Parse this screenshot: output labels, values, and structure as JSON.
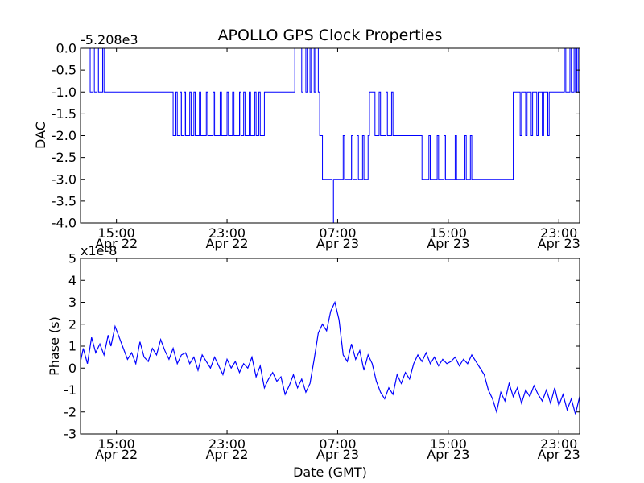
{
  "figure": {
    "title": "APOLLO GPS Clock Properties",
    "xlabel": "Date (GMT)"
  },
  "chart_data": [
    {
      "type": "line",
      "ylabel": "DAC",
      "offset_text": "-5.208e3",
      "ylim": [
        -4.0,
        0.0
      ],
      "xlim": [
        12.4,
        48.5
      ],
      "x_unit": "hours since 00:00 Apr 22 (GMT)",
      "yticks": [
        "0.0",
        "-0.5",
        "-1.0",
        "-1.5",
        "-2.0",
        "-2.5",
        "-3.0",
        "-3.5",
        "-4.0"
      ],
      "ytick_values": [
        0.0,
        -0.5,
        -1.0,
        -1.5,
        -2.0,
        -2.5,
        -3.0,
        -3.5,
        -4.0
      ],
      "xticks": [
        {
          "time": "15:00",
          "date": "Apr 22",
          "hour": 15
        },
        {
          "time": "23:00",
          "date": "Apr 22",
          "hour": 23
        },
        {
          "time": "07:00",
          "date": "Apr 23",
          "hour": 31
        },
        {
          "time": "15:00",
          "date": "Apr 23",
          "hour": 39
        },
        {
          "time": "23:00",
          "date": "Apr 23",
          "hour": 47
        }
      ],
      "series": [
        {
          "color": "#0000ff",
          "x": [
            12.4,
            13.0,
            13.1,
            13.3,
            13.4,
            13.6,
            13.7,
            14.0,
            14.1,
            14.6,
            16.6,
            19.0,
            19.1,
            19.3,
            19.4,
            19.6,
            19.7,
            19.9,
            20.0,
            20.3,
            20.4,
            20.6,
            20.7,
            21.0,
            21.1,
            21.5,
            21.6,
            22.0,
            22.1,
            22.5,
            22.6,
            23.0,
            23.1,
            23.4,
            23.5,
            23.9,
            24.0,
            24.2,
            24.3,
            24.6,
            24.7,
            25.0,
            25.1,
            25.3,
            25.4,
            25.7,
            27.1,
            27.8,
            27.9,
            28.4,
            28.5,
            28.7,
            28.8,
            29.0,
            29.1,
            29.3,
            29.4,
            29.6,
            29.7,
            29.9,
            30.5,
            30.6,
            30.7,
            31.4,
            31.5,
            32.0,
            32.1,
            32.4,
            32.5,
            32.8,
            32.9,
            33.2,
            33.3,
            33.7,
            34.0,
            34.1,
            34.5,
            34.6,
            34.9,
            35.0,
            35.4,
            37.0,
            37.1,
            37.6,
            37.7,
            38.2,
            38.3,
            38.7,
            38.8,
            39.5,
            39.6,
            40.2,
            40.3,
            40.6,
            40.7,
            41.2,
            43.6,
            43.7,
            44.2,
            44.3,
            44.6,
            44.7,
            45.0,
            45.1,
            45.4,
            45.5,
            45.8,
            45.9,
            46.2,
            46.3,
            47.0,
            47.1,
            47.4,
            47.5,
            47.8,
            47.9,
            48.1,
            48.2,
            48.3,
            48.4,
            48.5
          ],
          "y": [
            0.0,
            0.0,
            -1.0,
            0.0,
            -1.0,
            0.0,
            -1.0,
            0.0,
            -1.0,
            -1.0,
            -1.0,
            -1.0,
            -2.0,
            -1.0,
            -2.0,
            -1.0,
            -2.0,
            -1.0,
            -2.0,
            -1.0,
            -2.0,
            -1.0,
            -2.0,
            -1.0,
            -2.0,
            -1.0,
            -2.0,
            -1.0,
            -2.0,
            -1.0,
            -2.0,
            -1.0,
            -2.0,
            -1.0,
            -2.0,
            -1.0,
            -2.0,
            -1.0,
            -2.0,
            -1.0,
            -2.0,
            -1.0,
            -2.0,
            -1.0,
            -2.0,
            -1.0,
            -1.0,
            -1.0,
            0.0,
            -1.0,
            0.0,
            -1.0,
            0.0,
            -1.0,
            0.0,
            -1.0,
            0.0,
            -1.0,
            -2.0,
            -3.0,
            -3.0,
            -4.0,
            -3.0,
            -2.0,
            -3.0,
            -2.0,
            -3.0,
            -2.0,
            -3.0,
            -2.0,
            -3.0,
            -2.0,
            -1.0,
            -2.0,
            -1.0,
            -2.0,
            -1.0,
            -2.0,
            -1.0,
            -2.0,
            -2.0,
            -2.0,
            -3.0,
            -2.0,
            -3.0,
            -2.0,
            -3.0,
            -2.0,
            -3.0,
            -2.0,
            -3.0,
            -2.0,
            -3.0,
            -2.0,
            -3.0,
            -3.0,
            -3.0,
            -1.0,
            -2.0,
            -1.0,
            -2.0,
            -1.0,
            -2.0,
            -1.0,
            -2.0,
            -1.0,
            -2.0,
            -1.0,
            -2.0,
            -1.0,
            -1.0,
            -1.0,
            0.0,
            -1.0,
            0.0,
            -1.0,
            0.0,
            -1.0,
            0.0,
            -1.0,
            -1.0
          ]
        }
      ]
    },
    {
      "type": "line",
      "ylabel": "Phase (s)",
      "offset_text": "x1e-8",
      "ylim": [
        -3,
        5
      ],
      "xlim": [
        12.4,
        48.5
      ],
      "x_unit": "hours since 00:00 Apr 22 (GMT)",
      "yticks": [
        "5",
        "4",
        "3",
        "2",
        "1",
        "0",
        "-1",
        "-2",
        "-3"
      ],
      "ytick_values": [
        5,
        4,
        3,
        2,
        1,
        0,
        -1,
        -2,
        -3
      ],
      "xticks": [
        {
          "time": "15:00",
          "date": "Apr 22",
          "hour": 15
        },
        {
          "time": "23:00",
          "date": "Apr 22",
          "hour": 23
        },
        {
          "time": "07:00",
          "date": "Apr 23",
          "hour": 31
        },
        {
          "time": "15:00",
          "date": "Apr 23",
          "hour": 39
        },
        {
          "time": "23:00",
          "date": "Apr 23",
          "hour": 47
        }
      ],
      "series": [
        {
          "color": "#0000ff",
          "x": [
            12.4,
            12.6,
            12.9,
            13.2,
            13.5,
            13.8,
            14.1,
            14.4,
            14.6,
            14.9,
            15.2,
            15.5,
            15.8,
            16.1,
            16.4,
            16.7,
            17.0,
            17.3,
            17.6,
            17.9,
            18.2,
            18.5,
            18.8,
            19.1,
            19.4,
            19.7,
            20.0,
            20.3,
            20.6,
            20.9,
            21.2,
            21.5,
            21.8,
            22.1,
            22.4,
            22.7,
            23.0,
            23.3,
            23.6,
            23.9,
            24.2,
            24.5,
            24.8,
            25.1,
            25.4,
            25.7,
            26.0,
            26.3,
            26.6,
            26.9,
            27.2,
            27.5,
            27.8,
            28.1,
            28.4,
            28.7,
            29.0,
            29.3,
            29.6,
            29.9,
            30.2,
            30.5,
            30.8,
            31.1,
            31.4,
            31.7,
            32.0,
            32.3,
            32.6,
            32.9,
            33.2,
            33.5,
            33.8,
            34.1,
            34.4,
            34.7,
            35.0,
            35.3,
            35.6,
            35.9,
            36.2,
            36.5,
            36.8,
            37.1,
            37.4,
            37.7,
            38.0,
            38.3,
            38.6,
            38.9,
            39.2,
            39.5,
            39.8,
            40.1,
            40.4,
            40.7,
            41.0,
            41.3,
            41.6,
            41.9,
            42.2,
            42.5,
            42.8,
            43.1,
            43.4,
            43.7,
            44.0,
            44.3,
            44.6,
            44.9,
            45.2,
            45.5,
            45.8,
            46.1,
            46.4,
            46.7,
            47.0,
            47.3,
            47.6,
            47.9,
            48.2,
            48.5
          ],
          "y": [
            0.3,
            0.9,
            0.2,
            1.4,
            0.7,
            1.1,
            0.6,
            1.5,
            1.0,
            1.9,
            1.4,
            0.9,
            0.4,
            0.7,
            0.2,
            1.2,
            0.5,
            0.3,
            0.9,
            0.6,
            1.3,
            0.8,
            0.4,
            0.9,
            0.2,
            0.6,
            0.7,
            0.2,
            0.5,
            -0.1,
            0.6,
            0.3,
            0.0,
            0.5,
            0.1,
            -0.3,
            0.4,
            0.0,
            0.3,
            -0.2,
            0.2,
            0.0,
            0.5,
            -0.4,
            0.1,
            -0.9,
            -0.5,
            -0.2,
            -0.6,
            -0.4,
            -1.2,
            -0.8,
            -0.3,
            -0.9,
            -0.5,
            -1.1,
            -0.7,
            0.4,
            1.6,
            2.0,
            1.7,
            2.6,
            3.0,
            2.2,
            0.6,
            0.3,
            1.1,
            0.4,
            0.8,
            -0.1,
            0.6,
            0.2,
            -0.6,
            -1.1,
            -1.4,
            -0.9,
            -1.2,
            -0.3,
            -0.7,
            -0.2,
            -0.5,
            0.2,
            0.6,
            0.3,
            0.7,
            0.2,
            0.5,
            0.1,
            0.4,
            0.2,
            0.3,
            0.5,
            0.1,
            0.4,
            0.2,
            0.6,
            0.3,
            0.0,
            -0.3,
            -1.0,
            -1.4,
            -2.0,
            -1.1,
            -1.5,
            -0.7,
            -1.3,
            -0.9,
            -1.6,
            -1.0,
            -1.3,
            -0.8,
            -1.2,
            -1.5,
            -1.0,
            -1.6,
            -0.9,
            -1.7,
            -1.2,
            -1.9,
            -1.4,
            -2.1,
            -1.3
          ]
        }
      ]
    }
  ]
}
